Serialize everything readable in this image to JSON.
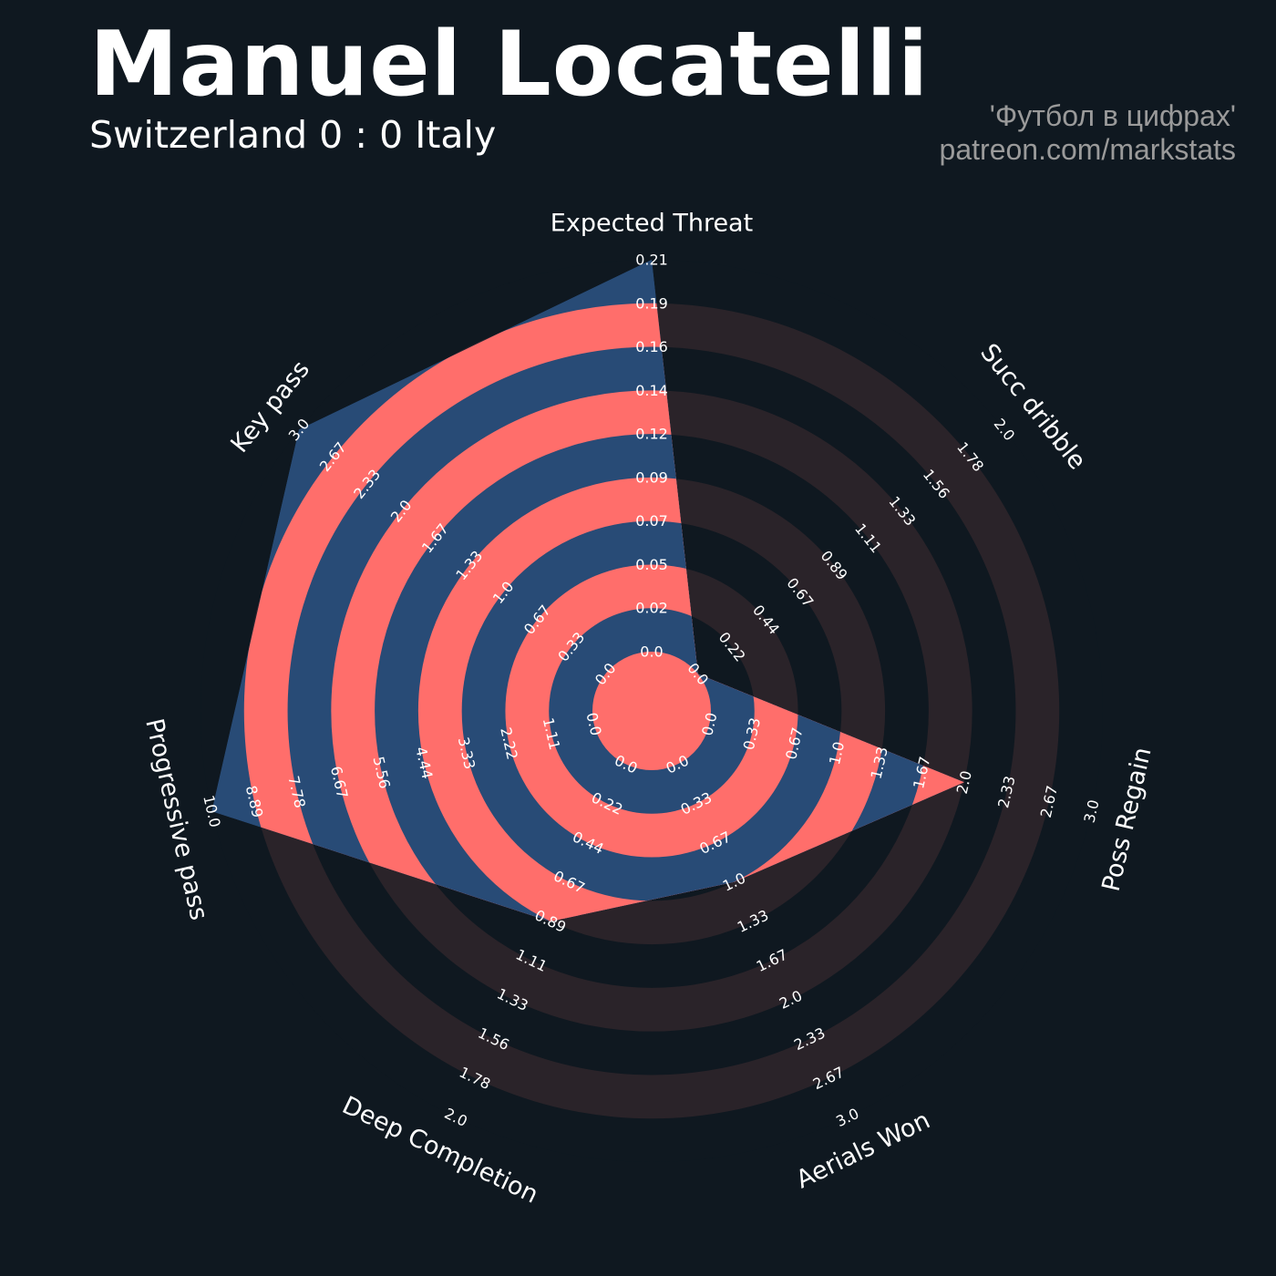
{
  "header": {
    "title": "Manuel Locatelli",
    "subtitle": "Switzerland 0 : 0 Italy",
    "credit_line1": "'Футбол в цифрах'",
    "credit_line2": "patreon.com/markstats"
  },
  "colors": {
    "background": "#0f1820",
    "ring_dark": "#2a2329",
    "ring_alt": "#0f1820",
    "polygon": "#284b76",
    "polygon_ring": "#ff6e6b",
    "text": "#ffffff"
  },
  "chart_data": {
    "type": "radar",
    "title": "Manuel Locatelli",
    "start_direction": "top",
    "direction": "clockwise",
    "params": [
      {
        "label": "Expected Threat",
        "min": 0.0,
        "max": 0.21,
        "value": 0.21,
        "ticks": [
          "0.0",
          "0.02",
          "0.05",
          "0.07",
          "0.09",
          "0.12",
          "0.14",
          "0.16",
          "0.19",
          "0.21"
        ]
      },
      {
        "label": "Succ dribble",
        "min": 0.0,
        "max": 2.0,
        "value": 0.0,
        "ticks": [
          "0.0",
          "0.22",
          "0.44",
          "0.67",
          "0.89",
          "1.11",
          "1.33",
          "1.56",
          "1.78",
          "2.0"
        ]
      },
      {
        "label": "Poss Regain",
        "min": 0.0,
        "max": 3.0,
        "value": 2.0,
        "ticks": [
          "0.0",
          "0.33",
          "0.67",
          "1.0",
          "1.33",
          "1.67",
          "2.0",
          "2.33",
          "2.67",
          "3.0"
        ]
      },
      {
        "label": "Aerials Won",
        "min": 0.0,
        "max": 3.0,
        "value": 1.0,
        "ticks": [
          "0.0",
          "0.33",
          "0.67",
          "1.0",
          "1.33",
          "1.67",
          "2.0",
          "2.33",
          "2.67",
          "3.0"
        ]
      },
      {
        "label": "Deep Completion",
        "min": 0.0,
        "max": 2.0,
        "value": 0.89,
        "ticks": [
          "0.0",
          "0.22",
          "0.44",
          "0.67",
          "0.89",
          "1.11",
          "1.33",
          "1.56",
          "1.78",
          "2.0"
        ]
      },
      {
        "label": "Progressive pass",
        "min": 0.0,
        "max": 10.0,
        "value": 10.0,
        "ticks": [
          "0.0",
          "1.11",
          "2.22",
          "3.33",
          "4.44",
          "5.56",
          "6.67",
          "7.78",
          "8.89",
          "10.0"
        ]
      },
      {
        "label": "Key pass",
        "min": 0.0,
        "max": 3.0,
        "value": 3.0,
        "ticks": [
          "0.0",
          "0.33",
          "0.67",
          "1.0",
          "1.33",
          "1.67",
          "2.0",
          "2.33",
          "2.67",
          "3.0"
        ]
      }
    ]
  }
}
